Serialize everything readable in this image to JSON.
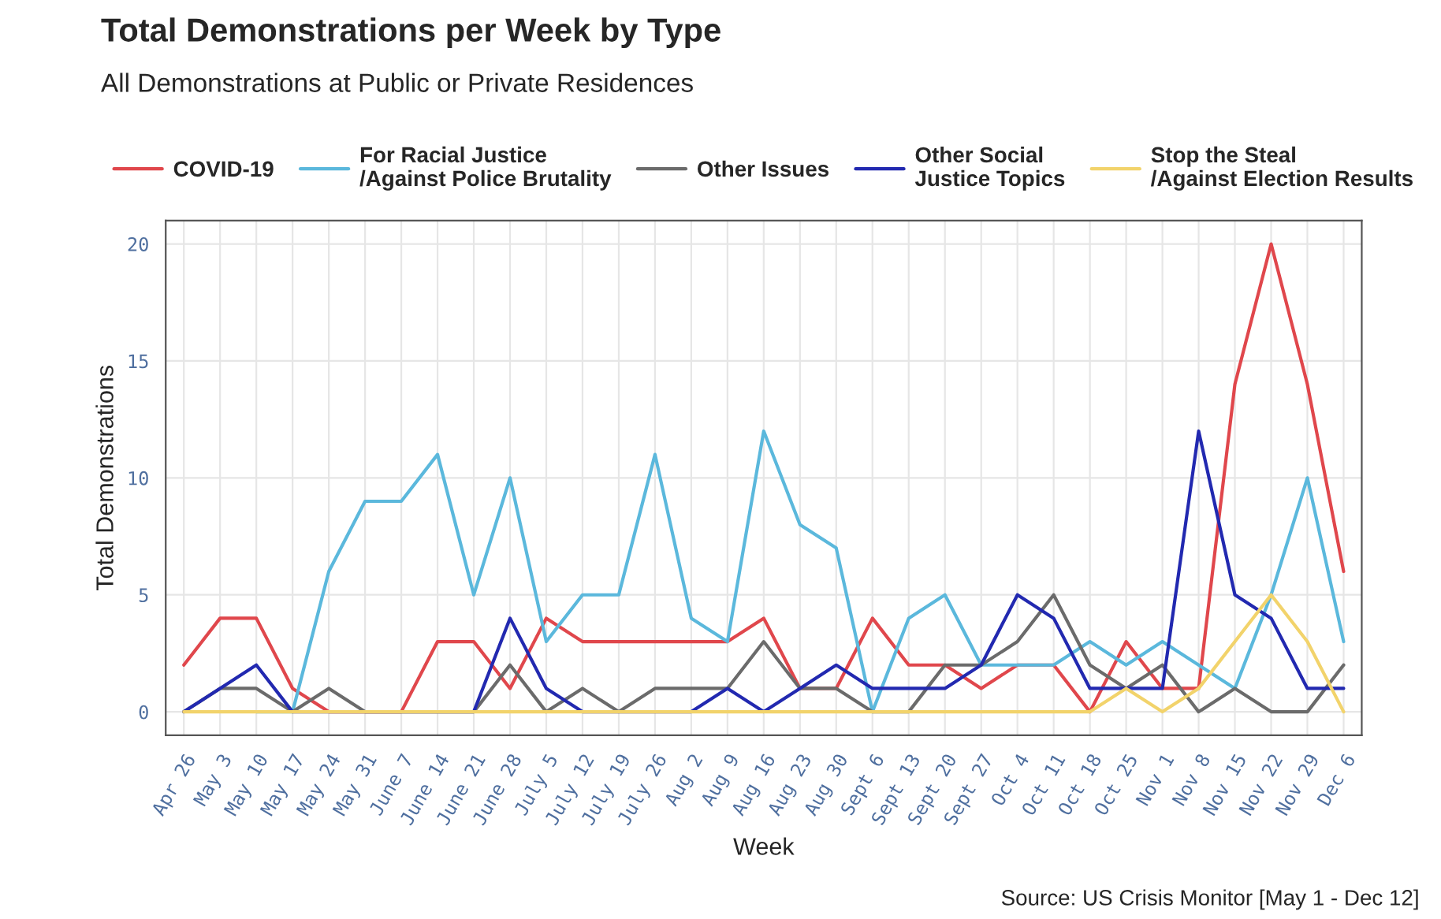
{
  "chart_data": {
    "type": "line",
    "title": "Total Demonstrations per Week by Type",
    "subtitle": "All Demonstrations at Public or Private Residences",
    "xlabel": "Week",
    "ylabel": "Total Demonstrations",
    "categories": [
      "Apr 26",
      "May 3",
      "May 10",
      "May 17",
      "May 24",
      "May 31",
      "June 7",
      "June 14",
      "June 21",
      "June 28",
      "July 5",
      "July 12",
      "July 19",
      "July 26",
      "Aug 2",
      "Aug 9",
      "Aug 16",
      "Aug 23",
      "Aug 30",
      "Sept 6",
      "Sept 13",
      "Sept 20",
      "Sept 27",
      "Oct 4",
      "Oct 11",
      "Oct 18",
      "Oct 25",
      "Nov 1",
      "Nov 8",
      "Nov 15",
      "Nov 22",
      "Nov 29",
      "Dec 6"
    ],
    "series": [
      {
        "name": "COVID-19",
        "color": "#e0474c",
        "values": [
          2,
          4,
          4,
          1,
          0,
          0,
          0,
          3,
          3,
          1,
          4,
          3,
          3,
          3,
          3,
          3,
          4,
          1,
          1,
          4,
          2,
          2,
          1,
          2,
          2,
          0,
          3,
          1,
          1,
          14,
          20,
          14,
          6
        ]
      },
      {
        "name": "For Racial Justice\n/Against Police Brutality",
        "color": "#5bb8dc",
        "values": [
          null,
          null,
          0,
          0,
          6,
          9,
          9,
          11,
          5,
          10,
          3,
          5,
          5,
          11,
          4,
          3,
          12,
          8,
          7,
          0,
          4,
          5,
          2,
          2,
          2,
          3,
          2,
          3,
          2,
          1,
          5,
          10,
          3
        ]
      },
      {
        "name": "Other Issues",
        "color": "#6b6b6b",
        "values": [
          0,
          1,
          1,
          0,
          1,
          0,
          0,
          0,
          0,
          2,
          0,
          1,
          0,
          1,
          1,
          1,
          3,
          1,
          1,
          0,
          0,
          2,
          2,
          3,
          5,
          2,
          1,
          2,
          0,
          1,
          0,
          0,
          2
        ]
      },
      {
        "name": "Other Social\nJustice Topics",
        "color": "#2229b0",
        "values": [
          0,
          1,
          2,
          0,
          0,
          0,
          0,
          0,
          0,
          4,
          1,
          0,
          0,
          0,
          0,
          1,
          0,
          1,
          2,
          1,
          1,
          1,
          2,
          5,
          4,
          1,
          1,
          1,
          12,
          5,
          4,
          1,
          1
        ]
      },
      {
        "name": "Stop the Steal\n/Against Election Results",
        "color": "#f2d36b",
        "values": [
          0,
          0,
          0,
          0,
          0,
          0,
          0,
          0,
          0,
          0,
          0,
          0,
          0,
          0,
          0,
          0,
          0,
          0,
          0,
          0,
          0,
          0,
          0,
          0,
          0,
          0,
          1,
          0,
          1,
          3,
          5,
          3,
          0
        ]
      }
    ],
    "ylim": [
      -1,
      21
    ],
    "yticks": [
      0,
      5,
      10,
      15,
      20
    ],
    "grid": true,
    "legend": "top",
    "annotations": [
      "Source: US Crisis Monitor [May 1 - Dec 12]"
    ]
  }
}
